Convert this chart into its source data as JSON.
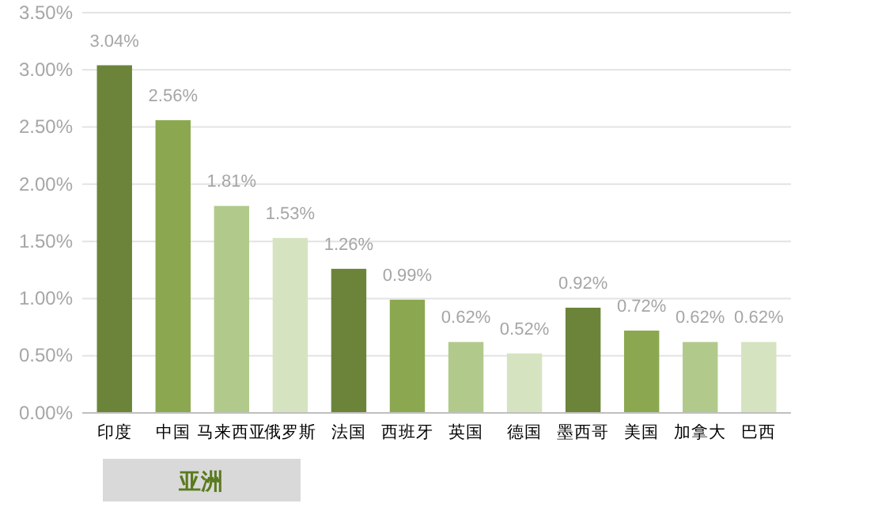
{
  "chart_data": {
    "type": "bar",
    "categories": [
      "印度",
      "中国",
      "马来西亚",
      "俄罗斯",
      "法国",
      "西班牙",
      "英国",
      "德国",
      "墨西哥",
      "美国",
      "加拿大",
      "巴西"
    ],
    "values": [
      3.04,
      2.56,
      1.81,
      1.53,
      1.26,
      0.99,
      0.62,
      0.52,
      0.92,
      0.72,
      0.62,
      0.62
    ],
    "value_labels": [
      "3.04%",
      "2.56%",
      "1.81%",
      "1.53%",
      "1.26%",
      "0.99%",
      "0.62%",
      "0.52%",
      "0.92%",
      "0.72%",
      "0.62%",
      "0.62%"
    ],
    "colors": [
      "#6b843a",
      "#8ba850",
      "#b1ca8b",
      "#d6e3c1",
      "#6b843a",
      "#8ba850",
      "#b1ca8b",
      "#d6e3c1",
      "#6b843a",
      "#8ba850",
      "#b1ca8b",
      "#d6e3c1"
    ],
    "ylim": [
      0,
      3.5
    ],
    "yticks": [
      {
        "value": 0,
        "label": "0.00%"
      },
      {
        "value": 0.5,
        "label": "0.50%"
      },
      {
        "value": 1,
        "label": "1.00%"
      },
      {
        "value": 1.5,
        "label": "1.50%"
      },
      {
        "value": 2,
        "label": "2.00%"
      },
      {
        "value": 2.5,
        "label": "2.50%"
      },
      {
        "value": 3,
        "label": "3.00%"
      },
      {
        "value": 3.5,
        "label": "3.50%"
      }
    ],
    "grid": "y",
    "annotations": [
      "亚洲"
    ]
  }
}
